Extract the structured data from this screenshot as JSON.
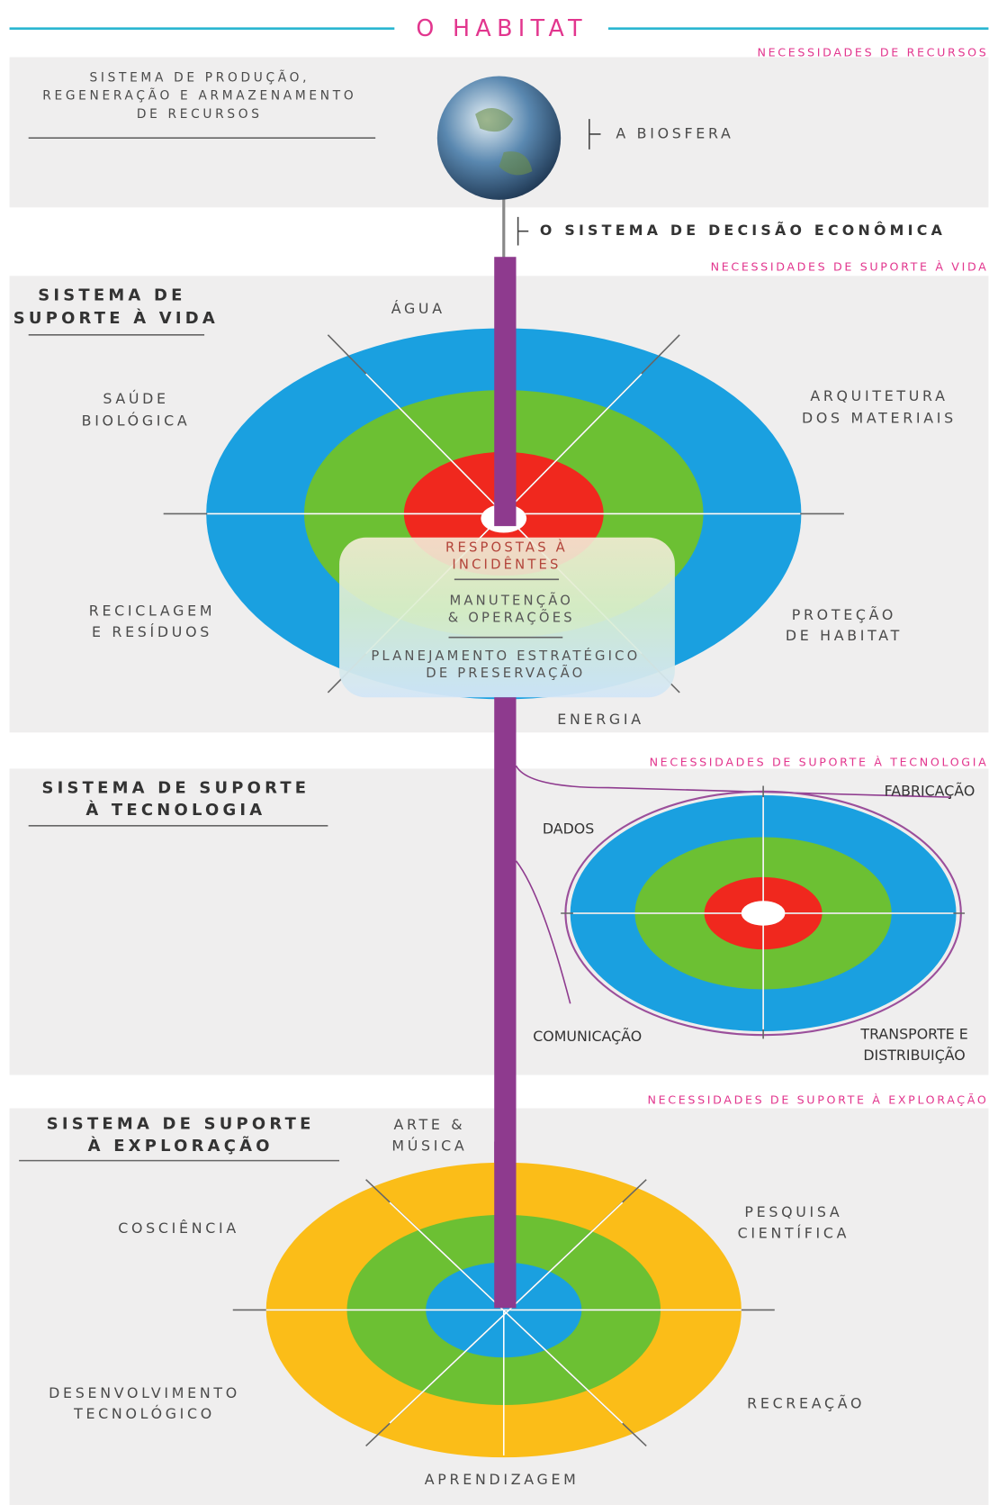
{
  "title": "O HABITAT",
  "resources": {
    "need": "NECESSIDADES DE RECURSOS",
    "system_lines": [
      "SISTEMA DE PRODUÇÃO,",
      "REGENERAÇÃO E ARMAZENAMENTO",
      "DE RECURSOS"
    ],
    "biosphere": "A BIOSFERA"
  },
  "economic_decision": "O SISTEMA DE DECISÃO ECONÔMICA",
  "life_support": {
    "need": "NECESSIDADES DE SUPORTE À VIDA",
    "title_lines": [
      "SISTEMA DE",
      "SUPORTE À VIDA"
    ],
    "water": "ÁGUA",
    "health": [
      "SAÚDE",
      "BIOLÓGICA"
    ],
    "architecture": [
      "ARQUITETURA",
      "DOS MATERIAIS"
    ],
    "recycling": [
      "RECICLAGEM",
      "E RESÍDUOS"
    ],
    "habitat_protection": [
      "PROTEÇÃO",
      "DE HABITAT"
    ],
    "energy": "ENERGIA",
    "incidents": [
      "RESPOSTAS À",
      "INCIDÊNTES"
    ],
    "maintenance": [
      "MANUTENÇÃO",
      "& OPERAÇÕES"
    ],
    "planning": [
      "PLANEJAMENTO ESTRATÉGICO",
      "DE PRESERVAÇÃO"
    ]
  },
  "technology_support": {
    "need": "NECESSIDADES DE SUPORTE À TECNOLOGIA",
    "title_lines": [
      "SISTEMA DE SUPORTE",
      "À TECNOLOGIA"
    ],
    "data": "DADOS",
    "manufacturing": "FABRICAÇÃO",
    "communication": "COMUNICAÇÃO",
    "transport": [
      "TRANSPORTE E",
      "DISTRIBUIÇÃO"
    ]
  },
  "exploration_support": {
    "need": "NECESSIDADES DE SUPORTE À EXPLORAÇÃO",
    "title_lines": [
      "SISTEMA DE SUPORTE",
      "À EXPLORAÇÃO"
    ],
    "art": [
      "ARTE &",
      "MÚSICA"
    ],
    "consciousness": "COSCIÊNCIA",
    "research": [
      "PESQUISA",
      "CIENTÍFICA"
    ],
    "tech_development": [
      "DESENVOLVIMENTO",
      "TECNOLÓGICO"
    ],
    "recreation": "RECREAÇÃO",
    "learning": "APRENDIZAGEM"
  }
}
